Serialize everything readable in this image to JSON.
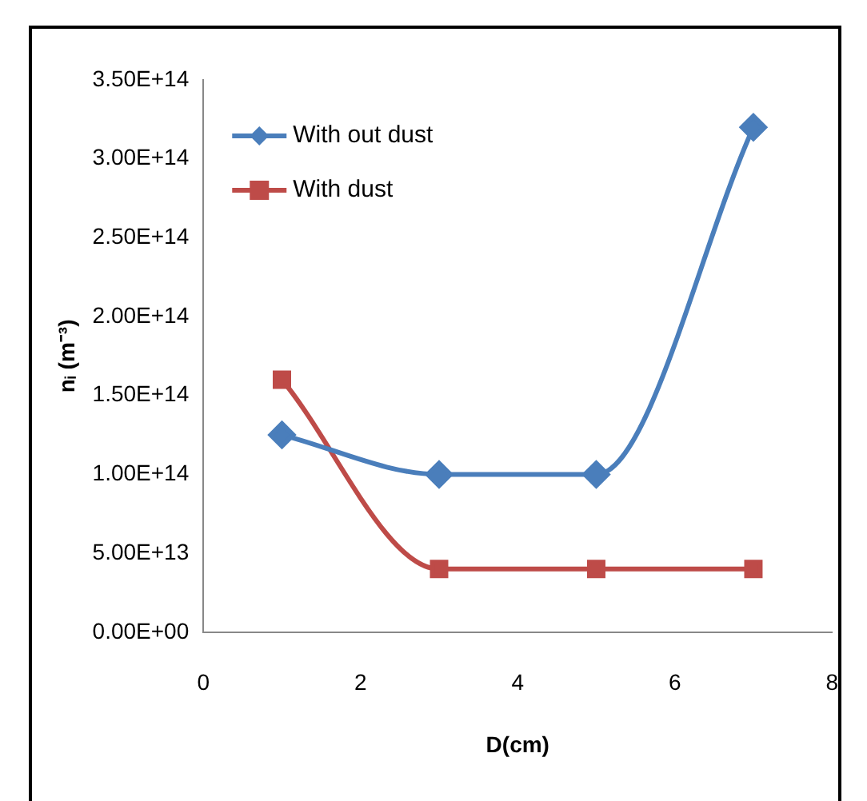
{
  "chart_data": {
    "type": "line",
    "xlabel": "D(cm)",
    "ylabel": "nᵢ (m⁻³)",
    "xlim": [
      0,
      8
    ],
    "xticks": [
      0,
      2,
      4,
      6,
      8
    ],
    "ylim": [
      0,
      350000000000000.0
    ],
    "yticks": [
      {
        "value": 0,
        "label": "0.00E+00"
      },
      {
        "value": 50000000000000.0,
        "label": "5.00E+13"
      },
      {
        "value": 100000000000000.0,
        "label": "1.00E+14"
      },
      {
        "value": 150000000000000.0,
        "label": "1.50E+14"
      },
      {
        "value": 200000000000000.0,
        "label": "2.00E+14"
      },
      {
        "value": 250000000000000.0,
        "label": "2.50E+14"
      },
      {
        "value": 300000000000000.0,
        "label": "3.00E+14"
      },
      {
        "value": 350000000000000.0,
        "label": "3.50E+14"
      }
    ],
    "x": [
      1,
      3,
      5,
      7
    ],
    "grid": false,
    "legend": "top left",
    "series": [
      {
        "name": "With out dust",
        "color": "#4a7ebb",
        "marker": "diamond",
        "values": [
          125000000000000.0,
          100000000000000.0,
          100000000000000.0,
          320000000000000.0
        ]
      },
      {
        "name": "With dust",
        "color": "#be4b48",
        "marker": "square",
        "values": [
          160000000000000.0,
          40000000000000.0,
          40000000000000.0,
          40000000000000.0
        ]
      }
    ]
  }
}
